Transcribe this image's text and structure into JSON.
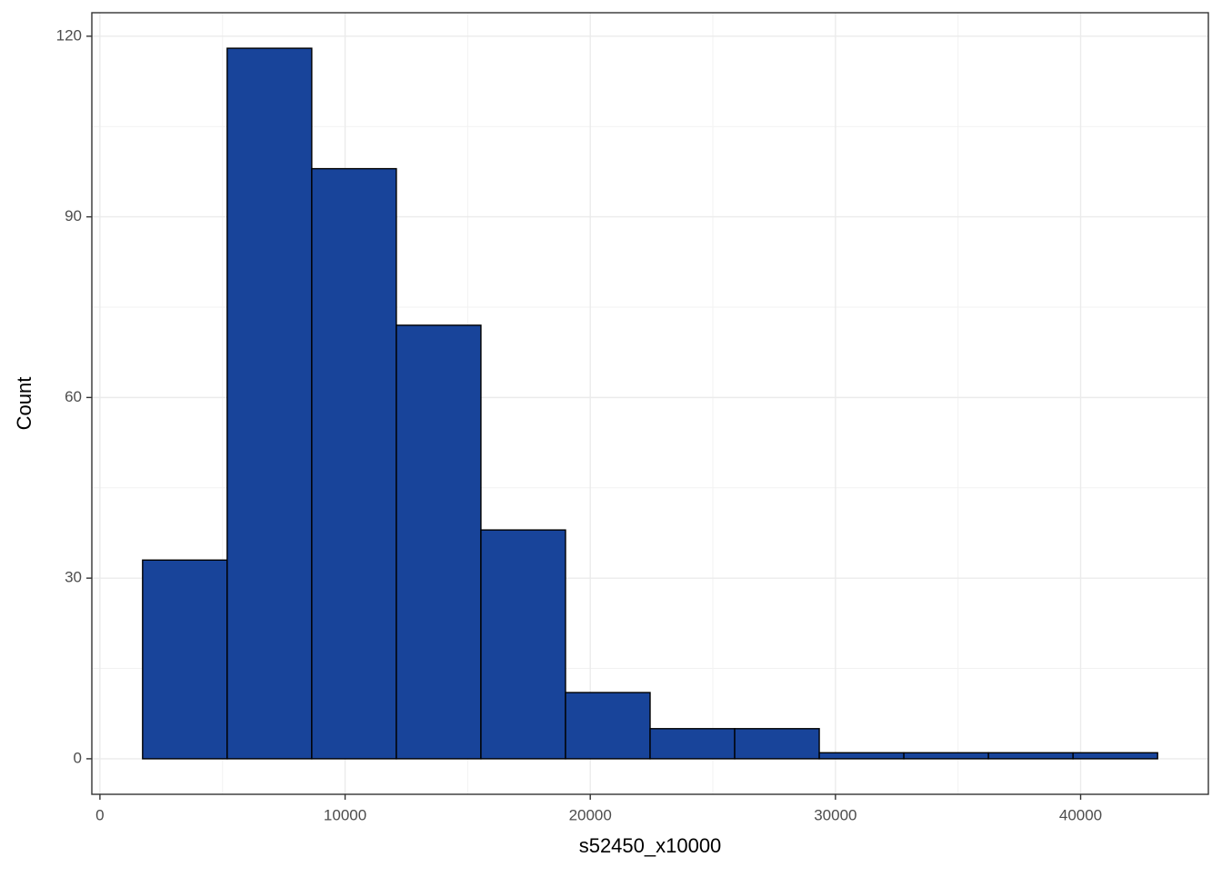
{
  "chart_data": {
    "type": "histogram",
    "x_label": "s52450_x10000",
    "y_label": "Count",
    "bins": [
      1740,
      5190,
      8640,
      12090,
      15540,
      18990,
      22440,
      25890,
      29340,
      32790,
      36240,
      39690,
      43140
    ],
    "counts": [
      33,
      118,
      98,
      72,
      38,
      11,
      5,
      5,
      1,
      1,
      1,
      1
    ],
    "color": "#18449a",
    "edge_color": "#000000",
    "xlim": [
      -330,
      45210
    ],
    "ylim": [
      -5.9,
      123.9
    ],
    "xticks": [
      0,
      10000,
      20000,
      30000,
      40000
    ],
    "yticks": [
      0,
      30,
      60,
      90,
      120
    ],
    "x_minor_grid": [
      5000,
      15000,
      25000,
      35000
    ],
    "y_minor_grid": [
      15,
      45,
      75,
      105
    ],
    "grid": true
  }
}
